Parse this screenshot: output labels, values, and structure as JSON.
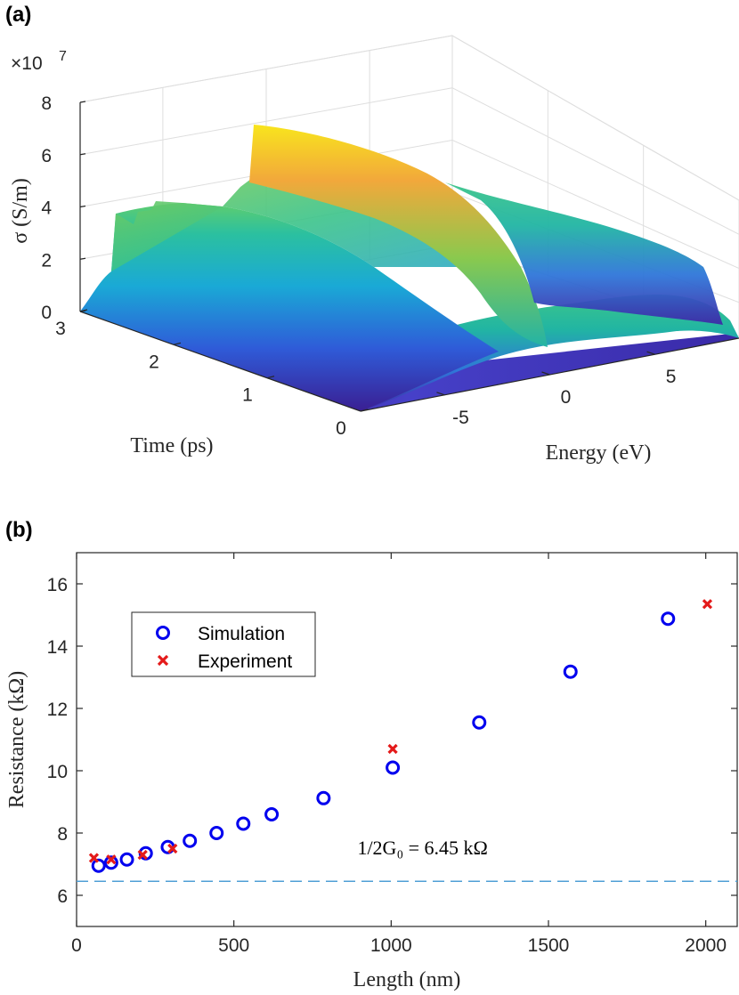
{
  "panel_labels": [
    "(a)",
    "(b)"
  ],
  "colors": {
    "simulation": "#0000ee",
    "experiment": "#e41a1a",
    "reference_line": "#4f9fd6",
    "axis": "#262626",
    "grid": "#dedede",
    "surface_low": "#3b1b8f",
    "surface_mid": "#21b5a3",
    "surface_high": "#f8e51d"
  },
  "chart_data": [
    {
      "type": "surface",
      "xlabel": "Energy (eV)",
      "ylabel": "Time (ps)",
      "zlabel": "σ (S/m)",
      "z_exponent_label": "×10",
      "z_exponent_power": "7",
      "x_ticks": [
        "-5",
        "0",
        "5"
      ],
      "x_tick_values": [
        -5,
        0,
        5
      ],
      "y_ticks": [
        "0",
        "1",
        "2",
        "3"
      ],
      "y_tick_values": [
        0,
        1,
        2,
        3
      ],
      "z_ticks": [
        "0",
        "2",
        "4",
        "6",
        "8"
      ],
      "z_tick_values": [
        0,
        2,
        4,
        6,
        8
      ],
      "xlim": [
        -9,
        9
      ],
      "ylim": [
        0,
        3
      ],
      "zlim": [
        0,
        8
      ],
      "grid": true,
      "colormap": "parula",
      "surface_profile_sigma_1e7": {
        "energy_eV": [
          -9,
          -8,
          -7,
          -6,
          -5,
          -4,
          -3,
          -2,
          -1,
          0,
          1,
          2,
          3,
          4,
          5,
          6,
          7,
          8,
          9
        ],
        "at_time_3ps": [
          0.0,
          0.6,
          3.7,
          3.9,
          4.0,
          4.1,
          4.2,
          4.8,
          6.5,
          6.9,
          6.0,
          4.8,
          4.4,
          4.1,
          3.8,
          3.2,
          1.5,
          0.4,
          0.0
        ],
        "at_time_0ps": [
          0.0,
          0.1,
          0.2,
          0.3,
          0.4,
          0.5,
          0.4,
          0.3,
          0.3,
          0.4,
          0.6,
          0.8,
          0.9,
          0.7,
          0.5,
          0.3,
          0.2,
          0.1,
          0.0
        ]
      }
    },
    {
      "type": "scatter",
      "xlabel": "Length (nm)",
      "ylabel": "Resistance (kΩ)",
      "xlim": [
        0,
        2100
      ],
      "ylim": [
        5,
        17
      ],
      "x_ticks": [
        "0",
        "500",
        "1000",
        "1500",
        "2000"
      ],
      "x_tick_values": [
        0,
        500,
        1000,
        1500,
        2000
      ],
      "y_ticks": [
        "6",
        "8",
        "10",
        "12",
        "14",
        "16"
      ],
      "y_tick_values": [
        6,
        8,
        10,
        12,
        14,
        16
      ],
      "grid": false,
      "legend_placement": "upper-left",
      "series": [
        {
          "name": "Simulation",
          "marker": "circle",
          "x": [
            70,
            110,
            160,
            220,
            290,
            360,
            445,
            530,
            620,
            785,
            1005,
            1280,
            1570,
            1880
          ],
          "y": [
            6.95,
            7.05,
            7.15,
            7.35,
            7.55,
            7.75,
            8.0,
            8.3,
            8.6,
            9.12,
            10.1,
            11.55,
            13.18,
            14.88
          ]
        },
        {
          "name": "Experiment",
          "marker": "x",
          "x": [
            55,
            110,
            210,
            305,
            1005,
            2005
          ],
          "y": [
            7.2,
            7.15,
            7.3,
            7.5,
            10.7,
            15.35
          ]
        }
      ],
      "reference_line": {
        "y": 6.45,
        "style": "dashed",
        "label": "1/2G₀ = 6.45 kΩ"
      }
    }
  ]
}
